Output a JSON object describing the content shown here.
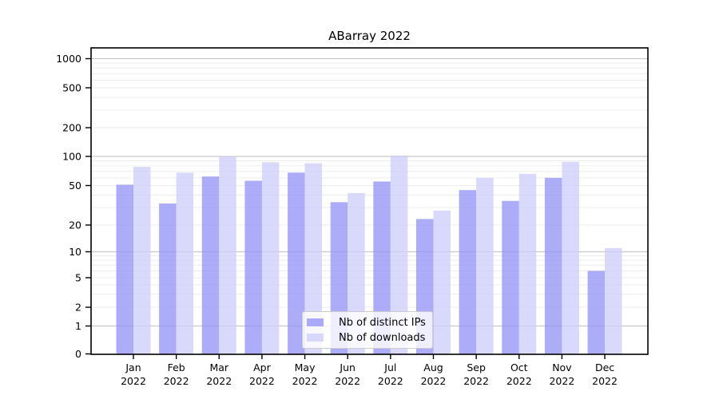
{
  "chart_data": {
    "type": "bar",
    "title": "ABarray 2022",
    "categories": [
      "Jan",
      "Feb",
      "Mar",
      "Apr",
      "May",
      "Jun",
      "Jul",
      "Aug",
      "Sep",
      "Oct",
      "Nov",
      "Dec"
    ],
    "category_year": "2022",
    "series": [
      {
        "name": "Nb of distinct IPs",
        "color": "#9090f5",
        "values": [
          51,
          33,
          62,
          56,
          68,
          34,
          55,
          23,
          45,
          35,
          60,
          6
        ]
      },
      {
        "name": "Nb of downloads",
        "color": "#ccccfa",
        "values": [
          78,
          68,
          100,
          87,
          85,
          42,
          102,
          28,
          60,
          66,
          88,
          11
        ]
      }
    ],
    "y_ticks": [
      0,
      1,
      2,
      5,
      10,
      20,
      50,
      100,
      200,
      500,
      1000
    ],
    "y_scale": "symlog",
    "ylim": [
      0,
      1000
    ],
    "grid": "horizontal",
    "legend_position": "lower-center",
    "colors": {
      "major_grid": "#c9c9c9",
      "minor_grid": "#ededed",
      "axis": "#000000",
      "text": "#000000"
    }
  }
}
